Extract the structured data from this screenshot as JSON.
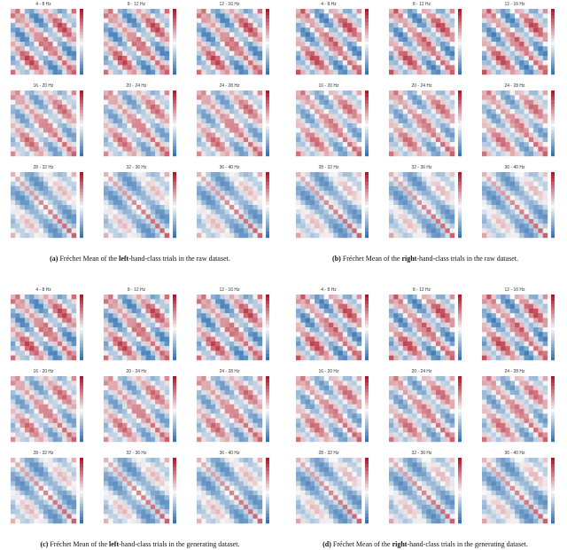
{
  "bands": [
    "4 - 8 Hz",
    "8 - 12 Hz",
    "12 - 16 Hz",
    "16 - 20 Hz",
    "20 - 24 Hz",
    "24 - 28 Hz",
    "28 - 32 Hz",
    "32 - 36 Hz",
    "36 - 40 Hz"
  ],
  "figures": [
    {
      "label": "(a)",
      "pre": "Fréchet Mean of the",
      "bold": "left",
      "post": "-hand-class trials in the raw dataset."
    },
    {
      "label": "(b)",
      "pre": "Fréchet Mean of the",
      "bold": "right",
      "post": "-hand-class trials in the raw dataset."
    },
    {
      "label": "(c)",
      "pre": "Fréchet Mean of the",
      "bold": "left",
      "post": "-hand-class trials in the generating dataset."
    },
    {
      "label": "(d)",
      "pre": "Fréchet Mean of the",
      "bold": "right",
      "post": "-hand-class trials in the generating dataset."
    }
  ]
}
